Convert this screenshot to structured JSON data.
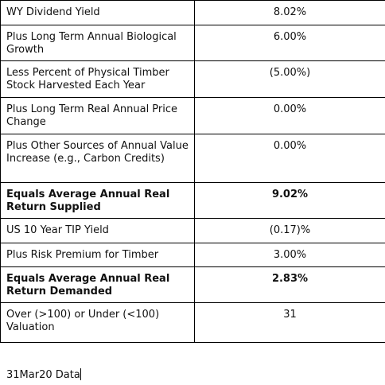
{
  "table": {
    "rows": [
      [
        "WY Dividend Yield",
        "8.02%"
      ],
      [
        "Plus Long Term Annual Biological Growth",
        "6.00%"
      ],
      [
        "Less Percent of Physical Timber Stock Harvested Each Year",
        "(5.00%)"
      ],
      [
        "Plus Long Term Real Annual Price Change",
        "0.00%"
      ],
      [
        "Plus Other Sources of Annual Value Increase (e.g., Carbon Credits)",
        "0.00%"
      ],
      [
        "Equals Average Annual Real Return Supplied",
        "9.02%"
      ],
      [
        "US 10 Year TIP Yield",
        "(0.17)%"
      ],
      [
        "Plus Risk Premium for Timber",
        "3.00%"
      ],
      [
        "Equals Average Annual Real Return Demanded",
        "2.83%"
      ],
      [
        "Over (>100) or Under (<100) Valuation",
        "31"
      ]
    ]
  },
  "footer": "31Mar20 Data"
}
